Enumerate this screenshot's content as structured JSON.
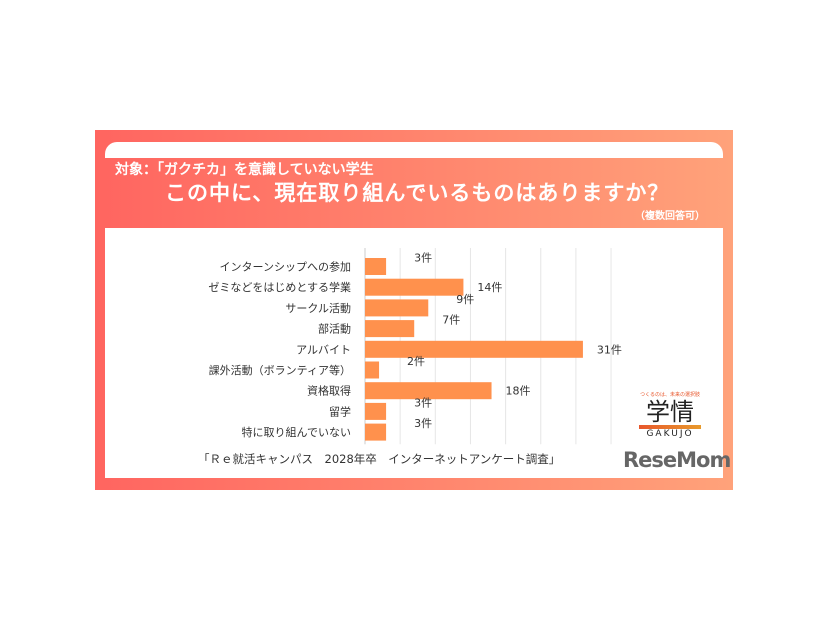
{
  "header": {
    "subtitle": "対象：「ガクチカ」を意識していない学生",
    "title": "この中に、現在取り組んでいるものはありますか？",
    "note": "（複数回答可）"
  },
  "source": "「Ｒｅ就活キャンパス　2028年卒　インターネットアンケート調査」",
  "logo": {
    "tagline": "つくるのは、未来の選択肢",
    "name": "学情",
    "roman": "GAKUJO"
  },
  "watermark": "ReseMom",
  "colors": {
    "bar": "#ff914d",
    "accent": "#ff6560"
  },
  "chart_data": {
    "type": "bar",
    "orientation": "horizontal",
    "unit": "件",
    "categories": [
      "インターンシップへの参加",
      "ゼミなどをはじめとする学業",
      "サークル活動",
      "部活動",
      "アルバイト",
      "課外活動（ボランティア等）",
      "資格取得",
      "留学",
      "特に取り組んでいない"
    ],
    "values": [
      3,
      14,
      9,
      7,
      31,
      2,
      18,
      3,
      3
    ],
    "labels": [
      "3件",
      "14件",
      "9件",
      "7件",
      "31件",
      "2件",
      "18件",
      "3件",
      "3件"
    ],
    "xlim": [
      0,
      35
    ],
    "grid": true
  }
}
